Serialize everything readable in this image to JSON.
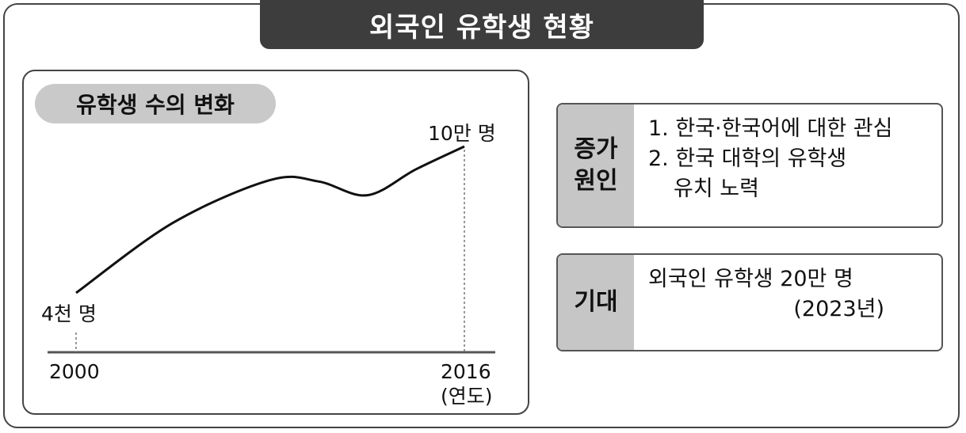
{
  "title": "외국인 유학생 현황",
  "chart_data": {
    "type": "line",
    "title": "유학생 수의 변화",
    "xlabel": "(연도)",
    "x": [
      2000,
      2004,
      2008,
      2010,
      2012,
      2014,
      2016
    ],
    "values": [
      4000,
      50000,
      78000,
      77000,
      68000,
      85000,
      100000
    ],
    "start_label": "4천 명",
    "end_label": "10만 명",
    "x_tick_labels": [
      "2000",
      "2016"
    ],
    "grid": false
  },
  "cause": {
    "label_line1": "증가",
    "label_line2": "원인",
    "item1": "1. 한국·한국어에 대한 관심",
    "item2_line1": "2. 한국 대학의 유학생",
    "item2_line2": "유치 노력"
  },
  "expectation": {
    "label": "기대",
    "text": "외국인 유학생 20만 명",
    "year": "(2023년)"
  }
}
